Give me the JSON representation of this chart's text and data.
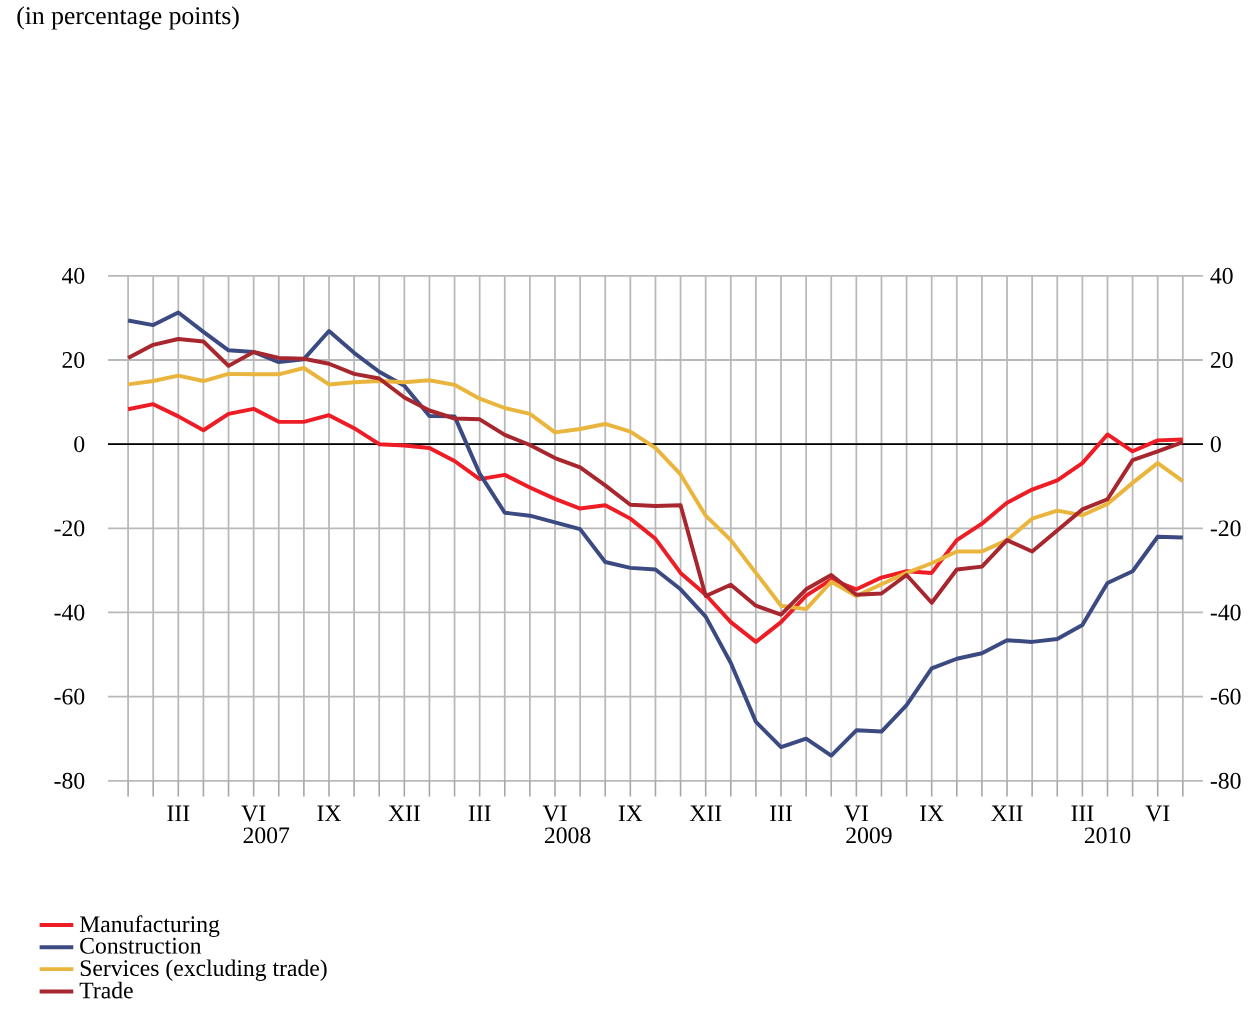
{
  "chart_data": {
    "type": "line",
    "title": "(in percentage points)",
    "categories": [
      null,
      null,
      "III",
      null,
      null,
      "VI",
      null,
      null,
      "IX",
      null,
      null,
      "XII",
      null,
      null,
      "III",
      null,
      null,
      "VI",
      null,
      null,
      "IX",
      null,
      null,
      "XII",
      null,
      null,
      "III",
      null,
      null,
      "VI",
      null,
      null,
      "IX",
      null,
      null,
      "XII",
      null,
      null,
      "III",
      null,
      null,
      "VI",
      null
    ],
    "annotations": [
      "2007",
      "2008",
      "2009",
      "2010"
    ],
    "ylim": [
      -80,
      40
    ],
    "yticks": [
      -80,
      -60,
      -40,
      -20,
      0,
      20,
      40
    ],
    "y2lim": [
      -80,
      40
    ],
    "y2ticks": [
      -80,
      -60,
      -40,
      -20,
      0,
      20,
      40
    ],
    "grid": true,
    "legend": "bottom",
    "line_style": "solid",
    "ref_lines": [
      {
        "axis": "y",
        "value": 0,
        "color": "#000000"
      }
    ],
    "series": [
      {
        "name": "Manufacturing",
        "color": "#ee1c25",
        "values": [
          8.3,
          9.5,
          6.6,
          3.3,
          7.2,
          8.4,
          5.3,
          5.3,
          6.9,
          3.8,
          0,
          -0.3,
          -0.9,
          -4,
          -8.3,
          -7.3,
          -10.3,
          -13,
          -15.3,
          -14.5,
          -17.7,
          -22.5,
          -30.6,
          -35.8,
          -42.3,
          -47,
          -42.3,
          -36,
          -32.2,
          -34.5,
          -31.7,
          -30.2,
          -30.6,
          -22.8,
          -18.9,
          -13.9,
          -10.8,
          -8.6,
          -4.5,
          2.3,
          -1.7,
          0.9,
          1.1
        ]
      },
      {
        "name": "Construction",
        "color": "#3c4a82",
        "values": [
          29.4,
          28.3,
          31.3,
          26.7,
          22.3,
          21.9,
          19.5,
          20.2,
          26.9,
          21.7,
          17.2,
          13.9,
          6.7,
          6.6,
          -7,
          -16.3,
          -17,
          -18.6,
          -20.2,
          -28,
          -29.4,
          -29.8,
          -34.5,
          -41,
          -52,
          -66,
          -72,
          -70,
          -74,
          -68,
          -68.3,
          -62,
          -53.3,
          -51,
          -49.7,
          -46.6,
          -47,
          -46.3,
          -43,
          -33,
          -30.2,
          -22,
          -22.2
        ]
      },
      {
        "name": "Services (excluding trade)",
        "color": "#e9b53c",
        "values": [
          14.2,
          15,
          16.3,
          15,
          16.7,
          16.6,
          16.6,
          18.1,
          14.2,
          14.7,
          15,
          14.7,
          15.2,
          14.1,
          10.8,
          8.6,
          7.2,
          2.8,
          3.6,
          4.8,
          3,
          -0.9,
          -7.2,
          -17,
          -22.8,
          -30.6,
          -38.4,
          -39.2,
          -32.7,
          -36.1,
          -33.3,
          -30.6,
          -28.3,
          -25.5,
          -25.5,
          -22.8,
          -17.7,
          -15.8,
          -16.9,
          -14.2,
          -9.2,
          -4.5,
          -8.8
        ]
      },
      {
        "name": "Trade",
        "color": "#a8262e",
        "values": [
          20.5,
          23.6,
          25,
          24.4,
          18.6,
          21.9,
          20.5,
          20.3,
          19.1,
          16.7,
          15.6,
          11.1,
          8,
          6.1,
          5.9,
          2.2,
          -0.2,
          -3.3,
          -5.5,
          -9.8,
          -14.4,
          -14.7,
          -14.5,
          -36.1,
          -33.4,
          -38.4,
          -40.5,
          -34.5,
          -31.1,
          -35.8,
          -35.5,
          -31.1,
          -37.7,
          -29.8,
          -29.1,
          -22.8,
          -25.5,
          -20.5,
          -15.5,
          -13.1,
          -3.8,
          -1.7,
          0.5
        ]
      }
    ]
  }
}
